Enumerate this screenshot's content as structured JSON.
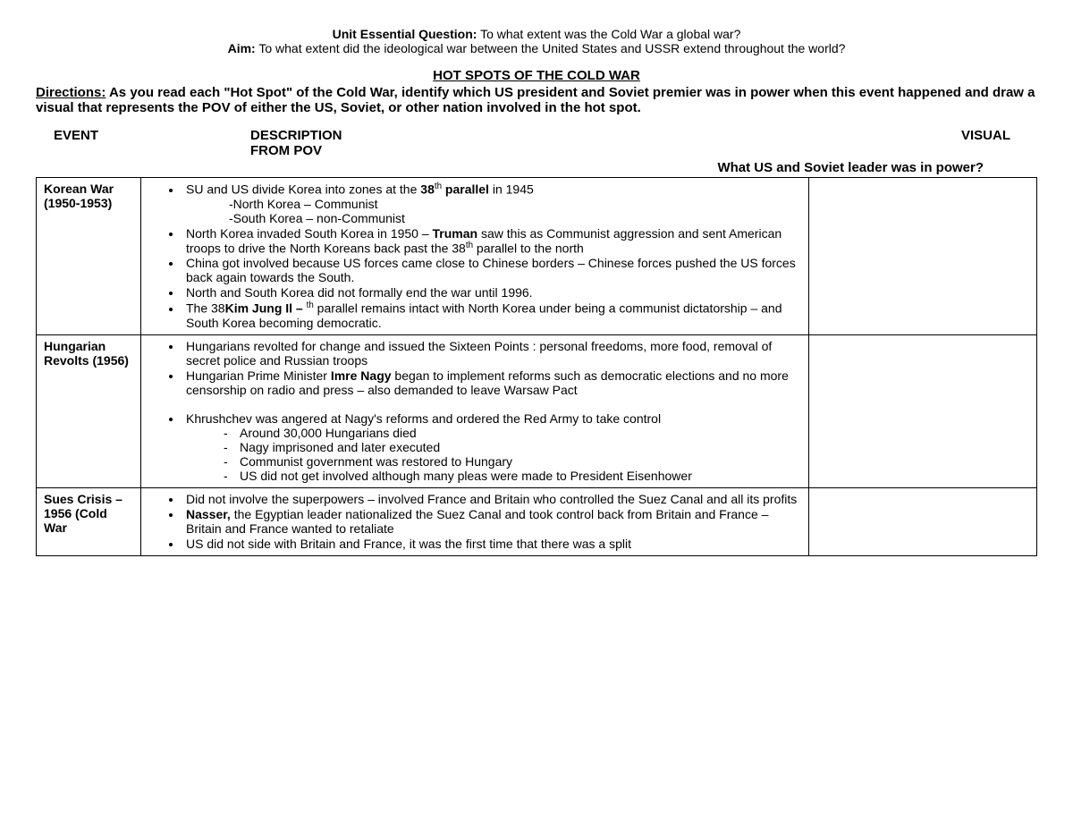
{
  "header": {
    "ueq_label": "Unit Essential Question:",
    "ueq_text": " To what extent was the Cold War a global war?",
    "aim_label": "Aim:",
    "aim_text": " To what extent did the ideological war between the United States and USSR extend throughout the world?"
  },
  "title": "HOT SPOTS OF THE COLD WAR",
  "directions_label": "Directions:",
  "directions_text": " As you read each \"Hot Spot\" of the Cold War, identify which US president and Soviet premier was in power when this event happened and draw a visual that represents the POV of either the US, Soviet, or other nation involved in the hot spot.",
  "columns": {
    "event": "EVENT",
    "desc1": "DESCRIPTION",
    "desc2": "FROM POV",
    "visual": "VISUAL",
    "sub": "What US and Soviet leader was in power?"
  },
  "rows": [
    {
      "event": "Korean War (1950-1953)",
      "bullets": [
        {
          "pre": "SU and US divide Korea into zones at the ",
          "bold": "38",
          "sup": "th",
          "bold2": " parallel",
          "post": " in 1945",
          "sub": [
            "-North Korea – Communist",
            "-South Korea – non-Communist"
          ]
        },
        {
          "pre": "North Korea invaded South Korea in 1950 – ",
          "bold": "Truman",
          "post": " saw this as Communist aggression and sent American troops to drive the North Koreans back past the 38",
          "sup2": "th",
          "post2": " parallel to the north"
        },
        {
          "pre": "China got involved because US forces came close to Chinese borders – Chinese forces pushed the US forces back again towards the South."
        },
        {
          "pre": "North and South Korea did not formally end the war until 1996."
        },
        {
          "pre": "The 38",
          "sup": "th",
          "post": " parallel remains intact with North Korea under ",
          "bold": "Kim Jung Il – ",
          "post2": "being a communist dictatorship – and South Korea becoming democratic."
        }
      ]
    },
    {
      "event": "Hungarian Revolts (1956)",
      "bullets": [
        {
          "pre": "Hungarians revolted for change and issued the Sixteen Points : personal freedoms, more  food, removal of secret police and Russian troops"
        },
        {
          "pre": "Hungarian Prime Minister ",
          "bold": "Imre Nagy",
          "post": " began to implement reforms such as democratic elections and no more censorship on radio and press – also demanded to leave Warsaw Pact"
        },
        {
          "spacer": true
        },
        {
          "pre": "Khrushchev was angered at Nagy's reforms and ordered the Red Army to take control",
          "dashes": [
            "Around 30,000 Hungarians died",
            "Nagy imprisoned and later executed",
            "Communist government was restored to Hungary",
            "US did not get involved although many pleas were made to President Eisenhower"
          ]
        }
      ]
    },
    {
      "event": "Sues Crisis – 1956 (Cold War",
      "bullets": [
        {
          "pre": "Did not involve the superpowers – involved France and Britain who controlled the Suez Canal and all its profits"
        },
        {
          "bold": "Nasser,",
          "post": " the Egyptian leader nationalized the Suez Canal and took control back from Britain and France – Britain and France wanted to retaliate"
        },
        {
          "pre": "US did not side with Britain and France, it was the first time that there was a split"
        }
      ]
    }
  ]
}
